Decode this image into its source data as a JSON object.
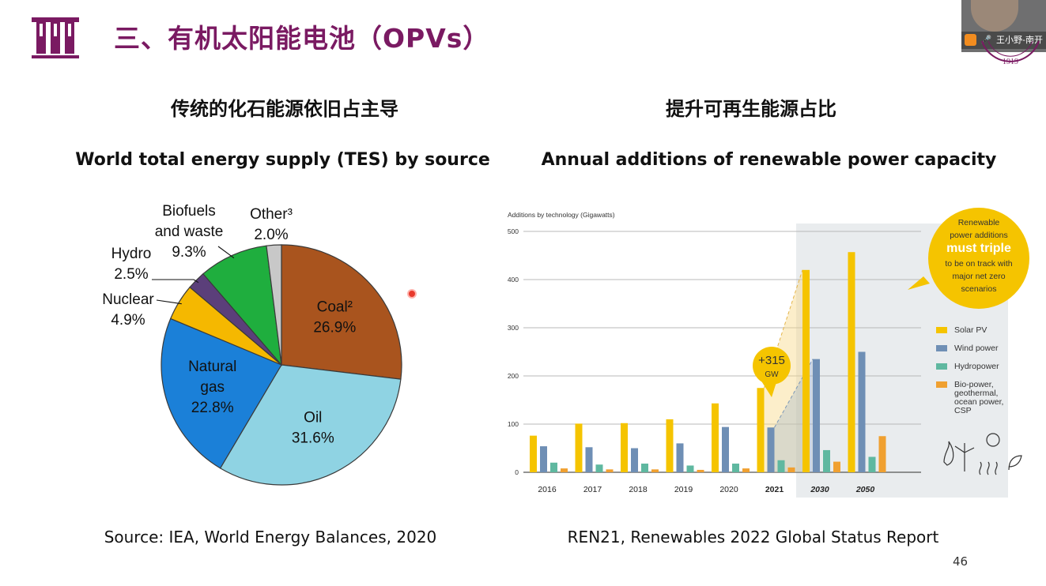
{
  "slide": {
    "title": "三、有机太阳能电池（OPVs）",
    "page_number": "46",
    "left_subtitle": "传统的化石能源依旧占主导",
    "right_subtitle": "提升可再生能源占比",
    "left_chart_title": "World total energy supply (TES) by source",
    "right_chart_title": "Annual additions of renewable power capacity",
    "left_source": "Source: IEA, World Energy Balances, 2020",
    "right_source": "REN21, Renewables 2022 Global Status Report",
    "logo_icon": "test-tubes-icon"
  },
  "video_overlay": {
    "name": "王小野-南开",
    "seal_year": "1919",
    "icons": [
      "user-icon",
      "microphone-icon"
    ]
  },
  "chart_data": [
    {
      "type": "pie",
      "title": "World total energy supply (TES) by source",
      "slices": [
        {
          "label": "Coal²",
          "value": 26.9,
          "value_label": "26.9%",
          "color": "#a9541e"
        },
        {
          "label": "Oil",
          "value": 31.6,
          "value_label": "31.6%",
          "color": "#8fd3e3"
        },
        {
          "label": "Natural gas",
          "value": 22.8,
          "value_label": "22.8%",
          "color": "#1b80d8"
        },
        {
          "label": "Nuclear",
          "value": 4.9,
          "value_label": "4.9%",
          "color": "#f5b800"
        },
        {
          "label": "Hydro",
          "value": 2.5,
          "value_label": "2.5%",
          "color": "#5b3f7a"
        },
        {
          "label": "Biofuels and waste",
          "value": 9.3,
          "value_label": "9.3%",
          "color": "#1fae3e"
        },
        {
          "label": "Other³",
          "value": 2.0,
          "value_label": "2.0%",
          "color": "#c8c8c8"
        }
      ]
    },
    {
      "type": "bar",
      "title": "Annual additions of renewable power capacity",
      "ylabel": "Additions by technology (Gigawatts)",
      "ylim": [
        0,
        500
      ],
      "yticks": [
        0,
        100,
        200,
        300,
        400,
        500
      ],
      "categories": [
        "2016",
        "2017",
        "2018",
        "2019",
        "2020",
        "2021",
        "2030",
        "2050"
      ],
      "projected_categories": [
        "2030",
        "2050"
      ],
      "series": [
        {
          "name": "Solar PV",
          "color": "#f5c400",
          "values": [
            76,
            101,
            102,
            110,
            143,
            175,
            420,
            457
          ]
        },
        {
          "name": "Wind power",
          "color": "#6f8fb5",
          "values": [
            54,
            52,
            50,
            60,
            94,
            93,
            235,
            250
          ]
        },
        {
          "name": "Hydropower",
          "color": "#5fb8a0",
          "values": [
            20,
            16,
            18,
            14,
            18,
            25,
            46,
            32
          ]
        },
        {
          "name": "Bio-power, geothermal, ocean power, CSP",
          "color": "#f0a030",
          "values": [
            8,
            6,
            6,
            5,
            8,
            10,
            22,
            75
          ]
        }
      ],
      "annotations": {
        "increase_label": [
          "+315",
          "GW"
        ],
        "callout_lines": [
          "Renewable",
          "power additions",
          "must triple",
          "to be on track with",
          "major net zero",
          "scenarios"
        ],
        "callout_color": "#f5c400"
      }
    }
  ]
}
